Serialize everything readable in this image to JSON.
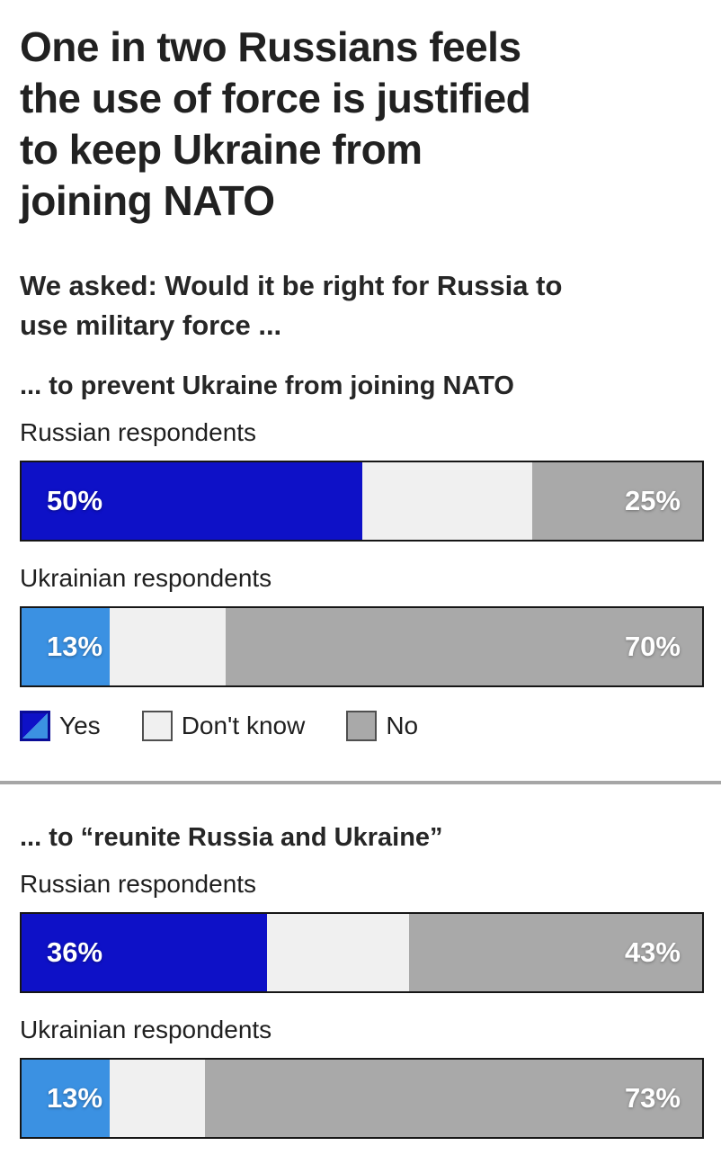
{
  "chart_data": {
    "type": "bar",
    "variant": "horizontal-stacked-100",
    "title": "One in two Russians feels the use of force is justified to keep Ukraine from joining NATO",
    "title_lines": [
      "One in two Russians feels",
      "the use of force is justified",
      "to keep Ukraine from",
      "joining NATO"
    ],
    "subtitle": "We asked: Would it be right for Russia to use military force ...",
    "subtitle_lines": [
      "We asked: Would it be right for Russia to",
      "use military force ..."
    ],
    "categories": [
      "Yes",
      "Don't know",
      "No"
    ],
    "colors": {
      "yes_russian": "#0E11C7",
      "yes_ukrainian": "#3B91E2",
      "dont_know": "#F0F0F0",
      "no": "#A9A9A9"
    },
    "legend": {
      "yes_label": "Yes",
      "dont_know_label": "Don't know",
      "no_label": "No",
      "position": "below-first-section"
    },
    "sections": [
      {
        "heading": "... to prevent Ukraine from joining NATO",
        "rows": [
          {
            "label": "Russian respondents",
            "yes_color": "#0E11C7",
            "values": {
              "yes": 50,
              "dont_know": 25,
              "no": 25
            },
            "labels": {
              "yes": "50%",
              "no": "25%"
            }
          },
          {
            "label": "Ukrainian respondents",
            "yes_color": "#3B91E2",
            "values": {
              "yes": 13,
              "dont_know": 17,
              "no": 70
            },
            "labels": {
              "yes": "13%",
              "no": "70%"
            }
          }
        ]
      },
      {
        "heading": "... to “reunite Russia and Ukraine”",
        "rows": [
          {
            "label": "Russian respondents",
            "yes_color": "#0E11C7",
            "values": {
              "yes": 36,
              "dont_know": 21,
              "no": 43
            },
            "labels": {
              "yes": "36%",
              "no": "43%"
            }
          },
          {
            "label": "Ukrainian respondents",
            "yes_color": "#3B91E2",
            "values": {
              "yes": 13,
              "dont_know": 14,
              "no": 73
            },
            "labels": {
              "yes": "13%",
              "no": "73%"
            }
          }
        ]
      }
    ]
  }
}
